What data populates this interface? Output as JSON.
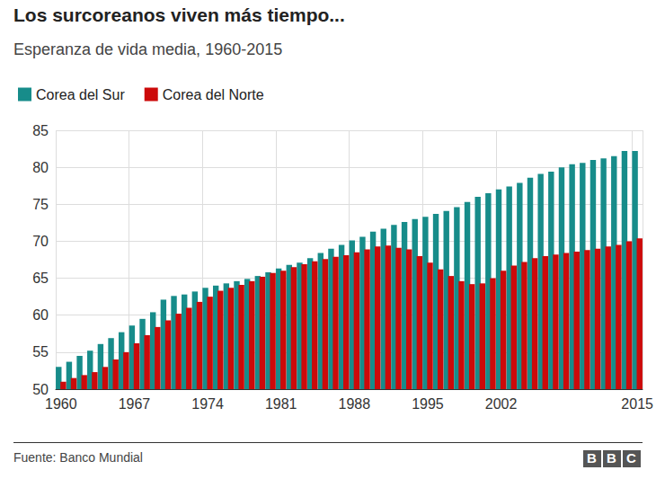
{
  "chart_data": {
    "type": "bar",
    "title": "Los surcoreanos viven más tiempo...",
    "subtitle": "Esperanza de vida media, 1960-2015",
    "source": "Fuente: Banco Mundial",
    "credit": "BBC",
    "categories": [
      "1960",
      null,
      null,
      null,
      null,
      null,
      null,
      "1967",
      null,
      null,
      null,
      null,
      null,
      null,
      "1974",
      null,
      null,
      null,
      null,
      null,
      null,
      "1981",
      null,
      null,
      null,
      null,
      null,
      null,
      "1988",
      null,
      null,
      null,
      null,
      null,
      null,
      "1995",
      null,
      null,
      null,
      null,
      null,
      null,
      "2002",
      null,
      null,
      null,
      null,
      null,
      null,
      null,
      null,
      null,
      null,
      null,
      null,
      "2015"
    ],
    "series": [
      {
        "name": "Corea del Sur",
        "color": "#178c8a",
        "values": [
          53.0,
          53.7,
          54.5,
          55.2,
          56.1,
          56.9,
          57.7,
          58.6,
          59.5,
          60.4,
          62.1,
          62.6,
          62.8,
          63.2,
          63.7,
          64.0,
          64.3,
          64.6,
          64.9,
          65.3,
          65.8,
          66.3,
          66.8,
          67.1,
          67.7,
          68.4,
          69.0,
          69.5,
          70.1,
          70.6,
          71.3,
          71.7,
          72.2,
          72.6,
          73.0,
          73.3,
          73.7,
          74.1,
          74.6,
          75.3,
          76.0,
          76.5,
          77.0,
          77.4,
          77.9,
          78.6,
          79.1,
          79.4,
          80.0,
          80.4,
          80.6,
          81.0,
          81.2,
          81.5,
          82.2,
          82.2
        ]
      },
      {
        "name": "Corea del Norte",
        "color": "#cc0a0a",
        "values": [
          51.0,
          51.5,
          51.9,
          52.3,
          53.0,
          54.0,
          55.0,
          56.2,
          57.3,
          58.4,
          59.3,
          60.2,
          61.0,
          61.8,
          62.5,
          63.3,
          63.7,
          64.1,
          64.6,
          65.2,
          65.7,
          66.0,
          66.5,
          66.9,
          67.3,
          67.6,
          67.9,
          68.1,
          68.5,
          68.9,
          69.3,
          69.4,
          69.1,
          68.9,
          68.0,
          67.1,
          66.2,
          65.3,
          64.6,
          64.2,
          64.3,
          65.0,
          66.0,
          66.7,
          67.2,
          67.7,
          68.0,
          68.2,
          68.4,
          68.6,
          68.8,
          69.0,
          69.3,
          69.5,
          70.0,
          70.4
        ]
      }
    ],
    "ylim": [
      50,
      85
    ],
    "yticks": [
      50,
      55,
      60,
      65,
      70,
      75,
      80,
      85
    ],
    "grid": true,
    "legend": "top-left"
  }
}
